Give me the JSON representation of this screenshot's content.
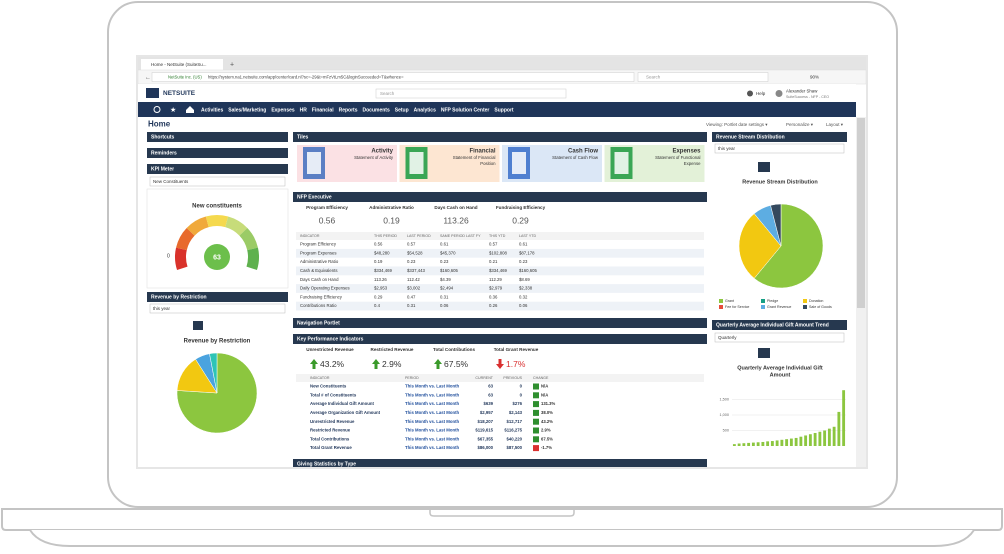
{
  "browser": {
    "tab": "Home - NetSuite (SuiteSu...",
    "site_identity": "NetSuite Inc. (US)",
    "url": "https://system.na1.netsuite.com/app/center/card.nl?sc=-29&t=mFzVtLm5C&loginSucceeded=T&whence=",
    "search": "Search",
    "zoom": "90%"
  },
  "header": {
    "logo": "NETSUITE",
    "search": "Search",
    "help": "Help",
    "user_name": "Alexander Shaw",
    "user_role": "SuiteSuccess - NFP - CEO"
  },
  "nav": [
    "Activities",
    "Sales/Marketing",
    "Expenses",
    "HR",
    "Financial",
    "Reports",
    "Documents",
    "Setup",
    "Analytics",
    "NFP Solution Center",
    "Support"
  ],
  "page": {
    "title": "Home",
    "viewing": "Viewing: Portlet date settings ▾",
    "personalize": "Personalize ▾",
    "layout": "Layout ▾"
  },
  "left": {
    "shortcuts": "Shortcuts",
    "reminders": "Reminders",
    "kpi_meter": {
      "title": "KPI Meter",
      "dropdown": "New Constituents",
      "gauge_title": "New constituents",
      "value": 63,
      "min": 0
    },
    "revenue_restriction": {
      "title": "Revenue by Restriction",
      "dropdown": "this year",
      "chart_title": "Revenue by Restriction",
      "values": [
        76,
        15,
        6,
        3
      ],
      "colors": [
        "#8cc63f",
        "#f2c811",
        "#4aa3df",
        "#2ec4b6"
      ]
    }
  },
  "tiles": {
    "title": "Tiles",
    "items": [
      {
        "name": "Activity",
        "subtitle": [
          "Statement of Activity"
        ],
        "color": "#fbe1e4",
        "icon": "#5b7fc4"
      },
      {
        "name": "Financial",
        "subtitle": [
          "Statement of Financial",
          "Position"
        ],
        "color": "#fde6d2",
        "icon": "#3aa655"
      },
      {
        "name": "Cash Flow",
        "subtitle": [
          "Statement of Cash Flow"
        ],
        "color": "#dbe7f6",
        "icon": "#4f7fd0"
      },
      {
        "name": "Expenses",
        "subtitle": [
          "Statement of Functional",
          "Expense"
        ],
        "color": "#e3f1d8",
        "icon": "#3aa655"
      }
    ]
  },
  "nfp": {
    "title": "NFP Executive",
    "kpis": [
      {
        "label": "Program Efficiency",
        "value": "0.56"
      },
      {
        "label": "Administrative Ratio",
        "value": "0.19"
      },
      {
        "label": "Days Cash on Hand",
        "value": "113.26"
      },
      {
        "label": "Fundraising Efficiency",
        "value": "0.29"
      }
    ],
    "columns": [
      "INDICATOR",
      "THIS PERIOD",
      "LAST PERIOD",
      "SAME PERIOD LAST FY",
      "THIS YTD",
      "LAST YTD"
    ],
    "rows": [
      [
        "Program Efficiency",
        "0.56",
        "0.57",
        "0.61",
        "0.57",
        "0.61"
      ],
      [
        "Program Expenses",
        "$48,280",
        "$54,528",
        "$45,370",
        "$102,808",
        "$87,178"
      ],
      [
        "Administrative Ratio",
        "0.19",
        "0.23",
        "0.23",
        "0.21",
        "0.23"
      ],
      [
        "Cash & Equivalents",
        "$334,469",
        "$337,443",
        "$160,605",
        "$334,469",
        "$160,605"
      ],
      [
        "Days Cash on Hand",
        "113.26",
        "112.42",
        "$4.39",
        "112.29",
        "$8.69"
      ],
      [
        "Daily Operating Expenses",
        "$2,953",
        "$3,002",
        "$2,494",
        "$2,979",
        "$2,338"
      ],
      [
        "Fundraising Efficiency",
        "0.29",
        "0.47",
        "0.31",
        "0.36",
        "0.32"
      ],
      [
        "Contributions Ratio",
        "0.4",
        "0.31",
        "0.06",
        "0.26",
        "0.06"
      ]
    ]
  },
  "nav_portlet": "Navigation Portlet",
  "kpi": {
    "title": "Key Performance Indicators",
    "headlines": [
      {
        "label": "Unrestricted Revenue",
        "value": "43.2%",
        "direction": "up"
      },
      {
        "label": "Restricted Revenue",
        "value": "2.9%",
        "direction": "up"
      },
      {
        "label": "Total Contributions",
        "value": "67.5%",
        "direction": "up"
      },
      {
        "label": "Total Grant Revenue",
        "value": "1.7%",
        "direction": "down"
      }
    ],
    "columns": [
      "INDICATOR",
      "PERIOD",
      "CURRENT",
      "PREVIOUS",
      "CHANGE"
    ],
    "rows": [
      [
        "New Constituents",
        "This Month vs. Last Month",
        "63",
        "0",
        "N/A"
      ],
      [
        "Total # of Constituents",
        "This Month vs. Last Month",
        "63",
        "0",
        "N/A"
      ],
      [
        "Average Individual Gift Amount",
        "This Month vs. Last Month",
        "$639",
        "$276",
        "131.3%"
      ],
      [
        "Average Organization Gift Amount",
        "This Month vs. Last Month",
        "$2,957",
        "$2,143",
        "38.0%"
      ],
      [
        "Unrestricted Revenue",
        "This Month vs. Last Month",
        "$18,207",
        "$12,717",
        "43.2%"
      ],
      [
        "Restricted Revenue",
        "This Month vs. Last Month",
        "$119,615",
        "$116,275",
        "2.9%"
      ],
      [
        "Total Contributions",
        "This Month vs. Last Month",
        "$67,355",
        "$40,220",
        "67.5%"
      ],
      [
        "Total Grant Revenue",
        "This Month vs. Last Month",
        "$86,000",
        "$87,500",
        "-1.7%"
      ]
    ],
    "directions": [
      "up",
      "up",
      "up",
      "up",
      "up",
      "up",
      "up",
      "down"
    ]
  },
  "giving": "Giving Statistics by Type",
  "revenue_stream": {
    "title": "Revenue Stream Distribution",
    "dropdown": "this year",
    "chart_title": "Revenue Stream Distribution",
    "series": [
      {
        "name": "Grant",
        "color": "#8cc63f",
        "value": 61
      },
      {
        "name": "Pledge",
        "color": "#16a085",
        "value": 0
      },
      {
        "name": "Donation",
        "color": "#f2c811",
        "value": 28
      },
      {
        "name": "Fee for Service",
        "color": "#e74c3c",
        "value": 0
      },
      {
        "name": "Grant Revenue",
        "color": "#5dade2",
        "value": 7
      },
      {
        "name": "Sale of Goods",
        "color": "#34495e",
        "value": 4
      }
    ]
  },
  "gift_trend": {
    "title": "Quarterly Average Individual Gift Amount Trend",
    "dropdown": "Quarterly",
    "chart_title": [
      "Quarterly Average Individual Gift",
      "Amount"
    ],
    "type": "bar",
    "color": "#8cc63f",
    "ylim": [
      0,
      2000
    ],
    "yticks": [
      {
        "value": 1500,
        "label": "1,500"
      },
      {
        "value": 1000,
        "label": "1,000"
      },
      500
    ],
    "values": [
      60,
      80,
      90,
      100,
      110,
      120,
      130,
      150,
      160,
      180,
      200,
      220,
      240,
      260,
      300,
      340,
      380,
      420,
      460,
      500,
      560,
      620,
      1100,
      1800
    ]
  }
}
